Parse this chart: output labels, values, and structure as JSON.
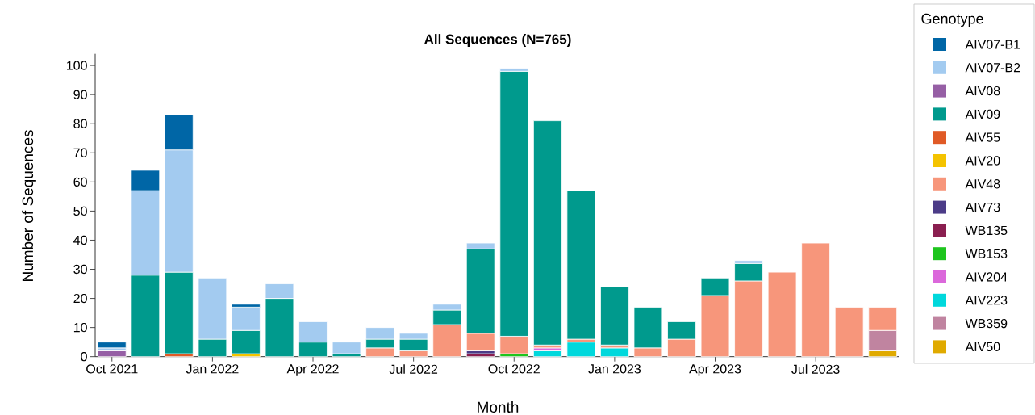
{
  "chart_data": {
    "type": "bar",
    "stacked": true,
    "title": "All Sequences (N=765)",
    "xlabel": "Month",
    "ylabel": "Number of Sequences",
    "legend_title": "Genotype",
    "legend": "right",
    "grid": false,
    "categories": [
      "Oct 2021",
      null,
      null,
      "Jan 2022",
      null,
      null,
      "Apr 2022",
      null,
      null,
      "Jul 2022",
      null,
      null,
      "Oct 2022",
      null,
      null,
      "Jan 2023",
      null,
      null,
      "Apr 2023",
      null,
      null,
      "Jul 2023",
      null,
      null
    ],
    "ylim": [
      0,
      104
    ],
    "yticks": [
      0,
      10,
      20,
      30,
      40,
      50,
      60,
      70,
      80,
      90,
      100
    ],
    "series": [
      {
        "name": "AIV50",
        "color": "#e0aa00",
        "values": [
          0,
          0,
          0,
          0,
          0,
          0,
          0,
          0,
          0,
          0,
          0,
          0,
          0,
          0,
          0,
          0,
          0,
          0,
          0,
          0,
          0,
          0,
          0,
          2
        ]
      },
      {
        "name": "WB359",
        "color": "#c084a0",
        "values": [
          0,
          0,
          0,
          0,
          0,
          0,
          0,
          0,
          0,
          0,
          0,
          0,
          0,
          0,
          0,
          0,
          0,
          0,
          0,
          0,
          0,
          0,
          0,
          7
        ]
      },
      {
        "name": "AIV223",
        "color": "#00d8dc",
        "values": [
          0,
          0,
          0,
          0,
          0,
          0,
          0,
          0,
          0,
          0,
          0,
          0,
          0,
          2,
          5,
          3,
          0,
          0,
          0,
          0,
          0,
          0,
          0,
          0
        ]
      },
      {
        "name": "AIV204",
        "color": "#db68db",
        "values": [
          0,
          0,
          0,
          0,
          0,
          0,
          0,
          0,
          0,
          0,
          0,
          0,
          0,
          1,
          0,
          0,
          0,
          0,
          0,
          0,
          0,
          0,
          0,
          0
        ]
      },
      {
        "name": "WB153",
        "color": "#1ec51e",
        "values": [
          0,
          0,
          0,
          0,
          0,
          0,
          0,
          0,
          0,
          0,
          0,
          0,
          1,
          0,
          0,
          0,
          0,
          0,
          0,
          0,
          0,
          0,
          0,
          0
        ]
      },
      {
        "name": "WB135",
        "color": "#8a1f50",
        "values": [
          0,
          0,
          0,
          0,
          0,
          0,
          0,
          0,
          0,
          0,
          0,
          1,
          0,
          0,
          0,
          0,
          0,
          0,
          0,
          0,
          0,
          0,
          0,
          0
        ]
      },
      {
        "name": "AIV73",
        "color": "#4c3c88",
        "values": [
          0,
          0,
          0,
          0,
          0,
          0,
          0,
          0,
          0,
          0,
          0,
          1,
          0,
          0,
          0,
          0,
          0,
          0,
          0,
          0,
          0,
          0,
          0,
          0
        ]
      },
      {
        "name": "AIV48",
        "color": "#f7967b",
        "values": [
          0,
          0,
          0,
          0,
          0,
          0,
          0,
          0,
          3,
          2,
          11,
          6,
          6,
          1,
          1,
          1,
          3,
          6,
          21,
          26,
          29,
          39,
          17,
          8
        ]
      },
      {
        "name": "AIV20",
        "color": "#f4c300",
        "values": [
          0,
          0,
          0,
          0,
          1,
          0,
          0,
          0,
          0,
          0,
          0,
          0,
          0,
          0,
          0,
          0,
          0,
          0,
          0,
          0,
          0,
          0,
          0,
          0
        ]
      },
      {
        "name": "AIV55",
        "color": "#e05a26",
        "values": [
          0,
          0,
          1,
          0,
          0,
          0,
          0,
          0,
          0,
          0,
          0,
          0,
          0,
          0,
          0,
          0,
          0,
          0,
          0,
          0,
          0,
          0,
          0,
          0
        ]
      },
      {
        "name": "AIV09",
        "color": "#009a8d",
        "values": [
          0,
          28,
          28,
          6,
          8,
          20,
          5,
          1,
          3,
          4,
          5,
          29,
          91,
          77,
          51,
          20,
          14,
          6,
          6,
          6,
          0,
          0,
          0,
          0
        ]
      },
      {
        "name": "AIV08",
        "color": "#965fa5",
        "values": [
          2,
          0,
          0,
          0,
          0,
          0,
          0,
          0,
          0,
          0,
          0,
          0,
          0,
          0,
          0,
          0,
          0,
          0,
          0,
          0,
          0,
          0,
          0,
          0
        ]
      },
      {
        "name": "AIV07-B2",
        "color": "#a3cbf0",
        "values": [
          1,
          29,
          42,
          21,
          8,
          5,
          7,
          4,
          4,
          2,
          2,
          2,
          1,
          0,
          0,
          0,
          0,
          0,
          0,
          1,
          0,
          0,
          0,
          0
        ]
      },
      {
        "name": "AIV07-B1",
        "color": "#0066a6",
        "values": [
          2,
          7,
          12,
          0,
          1,
          0,
          0,
          0,
          0,
          0,
          0,
          0,
          0,
          0,
          0,
          0,
          0,
          0,
          0,
          0,
          0,
          0,
          0,
          0
        ]
      }
    ]
  }
}
